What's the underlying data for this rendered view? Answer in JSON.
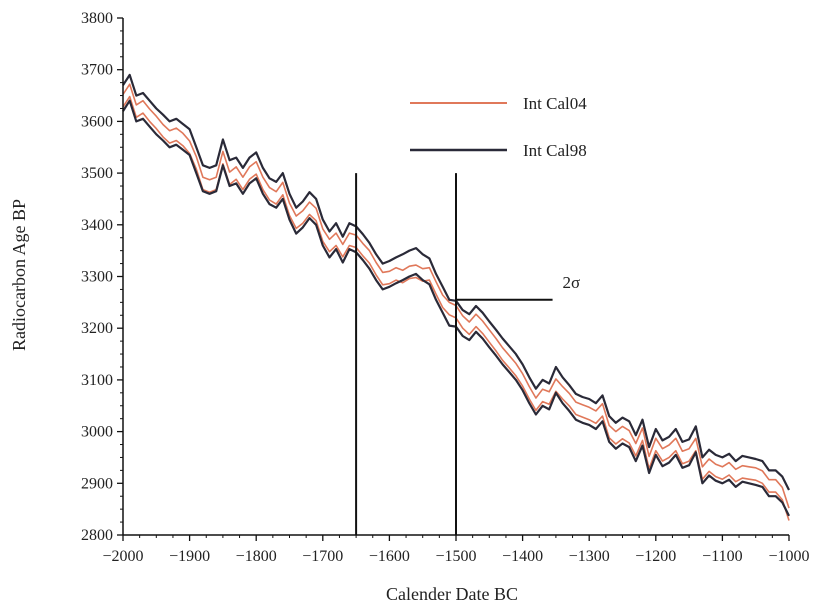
{
  "chart_data": {
    "type": "line",
    "title": "",
    "xlabel": "Calender Date BC",
    "ylabel": "Radiocarbon Age BP",
    "xlim": [
      -2000,
      -1000
    ],
    "ylim": [
      2800,
      3800
    ],
    "x_ticks": [
      -2000,
      -1900,
      -1800,
      -1700,
      -1600,
      -1500,
      -1400,
      -1300,
      -1200,
      -1100,
      -1000
    ],
    "y_ticks": [
      2800,
      2900,
      3000,
      3100,
      3200,
      3300,
      3400,
      3500,
      3600,
      3700,
      3800
    ],
    "x_tick_labels": [
      "−2000",
      "−1900",
      "−1800",
      "−1700",
      "−1600",
      "−1500",
      "−1400",
      "−1300",
      "−1200",
      "−1100",
      "−1000"
    ],
    "y_tick_labels": [
      "2800",
      "2900",
      "3000",
      "3100",
      "3200",
      "3300",
      "3400",
      "3500",
      "3600",
      "3700",
      "3800"
    ],
    "legend_position": "top-right",
    "grid": false,
    "series": [
      {
        "name": "Int Cal04",
        "color": "#e0785a",
        "band": true,
        "x": [
          -2000,
          -1990,
          -1980,
          -1970,
          -1960,
          -1950,
          -1940,
          -1930,
          -1920,
          -1910,
          -1900,
          -1890,
          -1880,
          -1870,
          -1860,
          -1850,
          -1840,
          -1830,
          -1820,
          -1810,
          -1800,
          -1790,
          -1780,
          -1770,
          -1760,
          -1750,
          -1740,
          -1730,
          -1720,
          -1710,
          -1700,
          -1690,
          -1680,
          -1670,
          -1660,
          -1650,
          -1640,
          -1630,
          -1620,
          -1610,
          -1600,
          -1590,
          -1580,
          -1570,
          -1560,
          -1550,
          -1540,
          -1530,
          -1520,
          -1510,
          -1500,
          -1490,
          -1480,
          -1470,
          -1460,
          -1450,
          -1440,
          -1430,
          -1420,
          -1410,
          -1400,
          -1390,
          -1380,
          -1370,
          -1360,
          -1350,
          -1340,
          -1330,
          -1320,
          -1310,
          -1300,
          -1290,
          -1280,
          -1270,
          -1260,
          -1250,
          -1240,
          -1230,
          -1220,
          -1210,
          -1200,
          -1190,
          -1180,
          -1170,
          -1160,
          -1150,
          -1140,
          -1130,
          -1120,
          -1110,
          -1100,
          -1090,
          -1080,
          -1070,
          -1060,
          -1050,
          -1040,
          -1030,
          -1020,
          -1010,
          -1000
        ],
        "y": [
          3640,
          3660,
          3620,
          3628,
          3612,
          3598,
          3582,
          3570,
          3575,
          3565,
          3550,
          3520,
          3480,
          3475,
          3480,
          3530,
          3490,
          3500,
          3480,
          3500,
          3510,
          3480,
          3460,
          3452,
          3470,
          3430,
          3405,
          3415,
          3432,
          3420,
          3380,
          3360,
          3372,
          3350,
          3372,
          3368,
          3352,
          3338,
          3315,
          3296,
          3298,
          3305,
          3300,
          3308,
          3310,
          3303,
          3305,
          3278,
          3252,
          3238,
          3232,
          3212,
          3200,
          3215,
          3202,
          3185,
          3168,
          3150,
          3135,
          3120,
          3100,
          3075,
          3053,
          3070,
          3065,
          3090,
          3075,
          3062,
          3045,
          3040,
          3035,
          3028,
          3042,
          3000,
          2988,
          2998,
          2990,
          2965,
          2995,
          2940,
          2975,
          2955,
          2962,
          2975,
          2950,
          2955,
          2975,
          2920,
          2935,
          2925,
          2920,
          2928,
          2915,
          2922,
          2920,
          2918,
          2912,
          2895,
          2895,
          2880,
          2840
        ],
        "band_halfwidth": 12
      },
      {
        "name": "Int Cal98",
        "color": "#2a2a38",
        "band": true,
        "x": [
          -2000,
          -1990,
          -1980,
          -1970,
          -1960,
          -1950,
          -1940,
          -1930,
          -1920,
          -1910,
          -1900,
          -1890,
          -1880,
          -1870,
          -1860,
          -1850,
          -1840,
          -1830,
          -1820,
          -1810,
          -1800,
          -1790,
          -1780,
          -1770,
          -1760,
          -1750,
          -1740,
          -1730,
          -1720,
          -1710,
          -1700,
          -1690,
          -1680,
          -1670,
          -1660,
          -1650,
          -1640,
          -1630,
          -1620,
          -1610,
          -1600,
          -1590,
          -1580,
          -1570,
          -1560,
          -1550,
          -1540,
          -1530,
          -1520,
          -1510,
          -1500,
          -1490,
          -1480,
          -1470,
          -1460,
          -1450,
          -1440,
          -1430,
          -1420,
          -1410,
          -1400,
          -1390,
          -1380,
          -1370,
          -1360,
          -1350,
          -1340,
          -1330,
          -1320,
          -1310,
          -1300,
          -1290,
          -1280,
          -1270,
          -1260,
          -1250,
          -1240,
          -1230,
          -1220,
          -1210,
          -1200,
          -1190,
          -1180,
          -1170,
          -1160,
          -1150,
          -1140,
          -1130,
          -1120,
          -1110,
          -1100,
          -1090,
          -1080,
          -1070,
          -1060,
          -1050,
          -1040,
          -1030,
          -1020,
          -1010,
          -1000
        ],
        "y": [
          3645,
          3665,
          3625,
          3630,
          3615,
          3600,
          3588,
          3575,
          3580,
          3570,
          3560,
          3525,
          3490,
          3485,
          3490,
          3540,
          3500,
          3505,
          3485,
          3505,
          3515,
          3485,
          3465,
          3458,
          3475,
          3435,
          3408,
          3420,
          3438,
          3425,
          3385,
          3362,
          3378,
          3352,
          3378,
          3372,
          3357,
          3340,
          3318,
          3300,
          3305,
          3312,
          3318,
          3325,
          3330,
          3318,
          3310,
          3280,
          3255,
          3230,
          3228,
          3210,
          3202,
          3218,
          3205,
          3188,
          3172,
          3155,
          3140,
          3125,
          3105,
          3080,
          3058,
          3075,
          3068,
          3100,
          3080,
          3065,
          3048,
          3042,
          3038,
          3030,
          3045,
          3005,
          2992,
          3002,
          2995,
          2968,
          2998,
          2945,
          2980,
          2958,
          2965,
          2980,
          2955,
          2960,
          2985,
          2925,
          2940,
          2930,
          2925,
          2932,
          2918,
          2928,
          2925,
          2922,
          2918,
          2900,
          2900,
          2888,
          2862
        ],
        "band_halfwidth": 25
      }
    ],
    "reference_lines": [
      {
        "type": "vertical",
        "x": -1650,
        "y_from": 2800,
        "y_to": 3500
      },
      {
        "type": "vertical",
        "x": -1500,
        "y_from": 2800,
        "y_to": 3500
      },
      {
        "type": "horizontal",
        "y": 3255,
        "x_from": -1500,
        "x_to": -1355
      }
    ],
    "annotations": [
      {
        "text": "2σ",
        "x": -1340,
        "y": 3278
      }
    ]
  }
}
